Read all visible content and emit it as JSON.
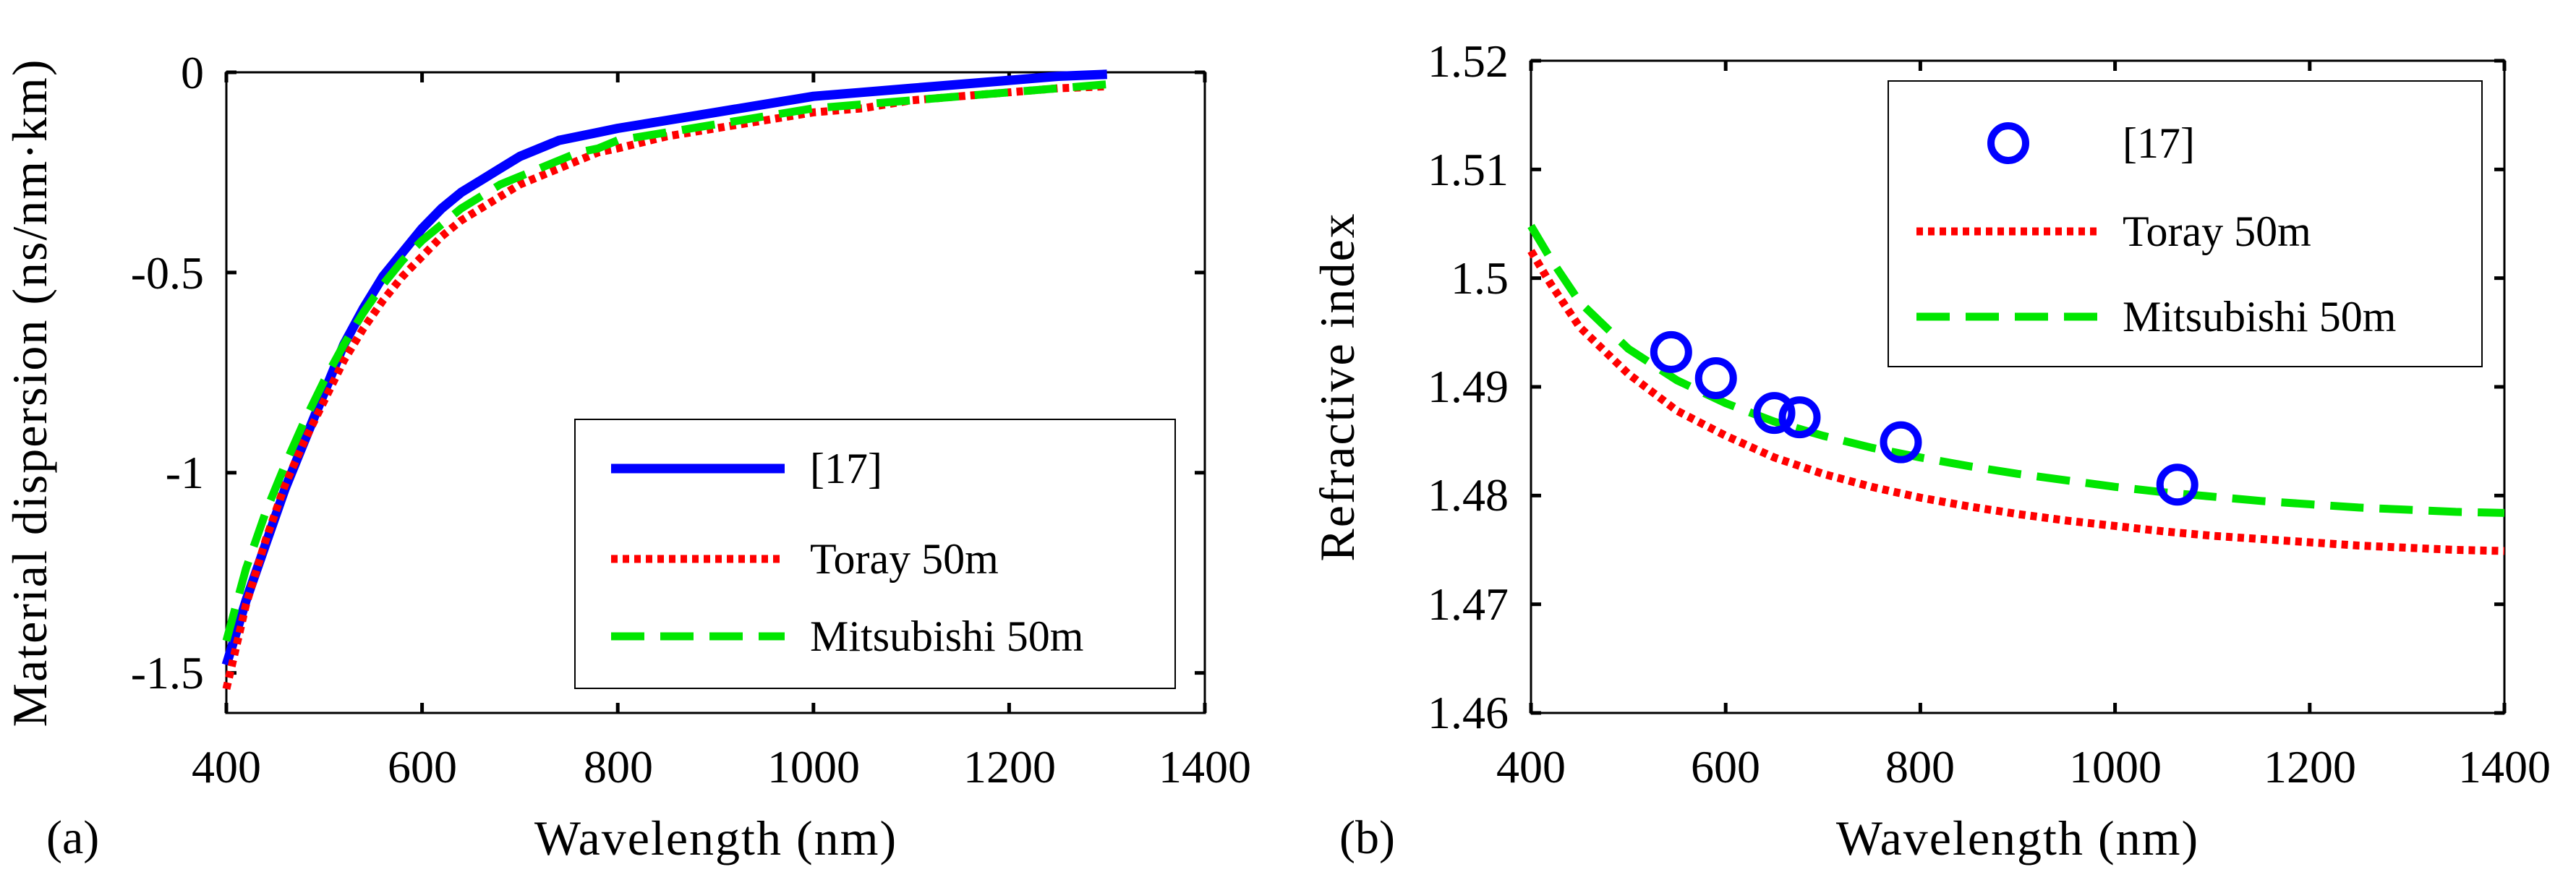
{
  "chart_data": [
    {
      "type": "line",
      "panel_label": "(a)",
      "xlabel": "Wavelength (nm)",
      "ylabel": "Material dispersion (ns/nm·km)",
      "xlim": [
        400,
        1400
      ],
      "ylim": [
        -1.6,
        0
      ],
      "xticks": [
        400,
        600,
        800,
        1000,
        1200,
        1400
      ],
      "xtick_labels": [
        "400",
        "600",
        "800",
        "1000",
        "1200",
        "1400"
      ],
      "yticks": [
        0,
        -0.5,
        -1,
        -1.5
      ],
      "ytick_labels": [
        "0",
        "-0.5",
        "-1",
        "-1.5"
      ],
      "legend_position": "lower-right",
      "series": [
        {
          "name": "[17]",
          "style": "solid",
          "color": "#0000ff",
          "x": [
            400,
            420,
            440,
            460,
            480,
            500,
            520,
            540,
            560,
            580,
            600,
            620,
            640,
            660,
            680,
            700,
            720,
            740,
            760,
            780,
            800,
            850,
            900,
            950,
            1000,
            1050,
            1100,
            1150,
            1200,
            1250,
            1300
          ],
          "y": [
            -1.48,
            -1.32,
            -1.18,
            -1.04,
            -0.92,
            -0.8,
            -0.68,
            -0.59,
            -0.51,
            -0.45,
            -0.39,
            -0.34,
            -0.3,
            -0.27,
            -0.24,
            -0.21,
            -0.19,
            -0.17,
            -0.16,
            -0.15,
            -0.14,
            -0.12,
            -0.1,
            -0.08,
            -0.06,
            -0.05,
            -0.04,
            -0.03,
            -0.02,
            -0.01,
            -0.005
          ]
        },
        {
          "name": "Toray 50m",
          "style": "dotted",
          "color": "#ff0000",
          "x": [
            400,
            420,
            440,
            460,
            480,
            500,
            520,
            540,
            560,
            580,
            600,
            620,
            640,
            660,
            680,
            700,
            720,
            740,
            760,
            780,
            800,
            850,
            900,
            950,
            1000,
            1050,
            1100,
            1150,
            1200,
            1250,
            1300
          ],
          "y": [
            -1.54,
            -1.33,
            -1.17,
            -1.03,
            -0.92,
            -0.82,
            -0.72,
            -0.64,
            -0.57,
            -0.51,
            -0.46,
            -0.41,
            -0.37,
            -0.34,
            -0.31,
            -0.28,
            -0.26,
            -0.24,
            -0.22,
            -0.2,
            -0.19,
            -0.16,
            -0.14,
            -0.12,
            -0.1,
            -0.09,
            -0.07,
            -0.06,
            -0.05,
            -0.04,
            -0.035
          ]
        },
        {
          "name": "Mitsubishi 50m",
          "style": "dashed",
          "color": "#00e600",
          "x": [
            400,
            420,
            440,
            460,
            480,
            500,
            520,
            540,
            560,
            580,
            600,
            620,
            640,
            660,
            680,
            700,
            720,
            740,
            760,
            780,
            800,
            850,
            900,
            950,
            1000,
            1050,
            1100,
            1150,
            1200,
            1250,
            1300
          ],
          "y": [
            -1.42,
            -1.24,
            -1.1,
            -0.98,
            -0.87,
            -0.77,
            -0.68,
            -0.6,
            -0.53,
            -0.47,
            -0.42,
            -0.38,
            -0.34,
            -0.31,
            -0.28,
            -0.26,
            -0.24,
            -0.22,
            -0.2,
            -0.19,
            -0.17,
            -0.15,
            -0.13,
            -0.11,
            -0.09,
            -0.08,
            -0.07,
            -0.06,
            -0.05,
            -0.04,
            -0.03
          ]
        }
      ]
    },
    {
      "type": "line",
      "panel_label": "(b)",
      "xlabel": "Wavelength (nm)",
      "ylabel": "Refractive index",
      "xlim": [
        400,
        1400
      ],
      "ylim": [
        1.46,
        1.52
      ],
      "xticks": [
        400,
        600,
        800,
        1000,
        1200,
        1400
      ],
      "xtick_labels": [
        "400",
        "600",
        "800",
        "1000",
        "1200",
        "1400"
      ],
      "yticks": [
        1.46,
        1.47,
        1.48,
        1.49,
        1.5,
        1.51,
        1.52
      ],
      "ytick_labels": [
        "1.46",
        "1.47",
        "1.48",
        "1.49",
        "1.5",
        "1.51",
        "1.52"
      ],
      "legend_position": "top-right",
      "series": [
        {
          "name": "[17]",
          "style": "markers",
          "color": "#0000ff",
          "x": [
            544,
            590,
            650,
            676,
            780,
            1064
          ],
          "y": [
            1.4932,
            1.4908,
            1.4876,
            1.4872,
            1.4849,
            1.481
          ]
        },
        {
          "name": "Toray 50m",
          "style": "dotted",
          "color": "#ff0000",
          "x": [
            400,
            420,
            450,
            500,
            550,
            600,
            650,
            700,
            750,
            800,
            850,
            900,
            950,
            1000,
            1050,
            1100,
            1150,
            1200,
            1250,
            1300,
            1350,
            1400
          ],
          "y": [
            1.5025,
            1.4995,
            1.4955,
            1.4912,
            1.4878,
            1.4855,
            1.4835,
            1.482,
            1.4808,
            1.4798,
            1.479,
            1.4783,
            1.4777,
            1.4772,
            1.4767,
            1.4763,
            1.476,
            1.4757,
            1.4754,
            1.4752,
            1.475,
            1.4749
          ]
        },
        {
          "name": "Mitsubishi 50m",
          "style": "dashed",
          "color": "#00e600",
          "x": [
            400,
            420,
            450,
            500,
            550,
            600,
            650,
            700,
            750,
            800,
            850,
            900,
            950,
            1000,
            1050,
            1100,
            1150,
            1200,
            1250,
            1300,
            1350,
            1400
          ],
          "y": [
            1.5048,
            1.5018,
            1.4978,
            1.4935,
            1.4906,
            1.4885,
            1.4868,
            1.4855,
            1.4844,
            1.4835,
            1.4827,
            1.482,
            1.4814,
            1.4808,
            1.4803,
            1.4799,
            1.4795,
            1.4792,
            1.4789,
            1.4787,
            1.4785,
            1.4784
          ]
        }
      ]
    }
  ]
}
